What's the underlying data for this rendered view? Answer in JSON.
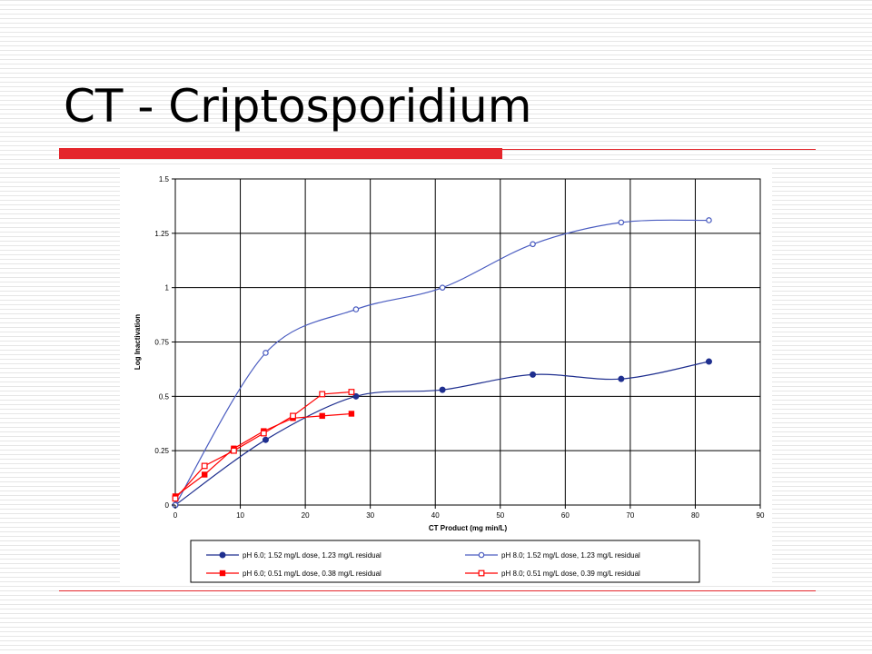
{
  "slide": {
    "title": "CT - Criptosporidium"
  },
  "colors": {
    "accent_red": "#e4262c",
    "series_blue": "#1f2f8f",
    "series_blue_light": "#4a5cc0",
    "series_red": "#ff0000"
  },
  "chart_data": {
    "type": "line",
    "xlabel": "CT Product (mg min/L)",
    "ylabel": "Log Inactivation",
    "xlim": [
      0,
      90
    ],
    "ylim": [
      0,
      1.5
    ],
    "x_ticks": [
      0,
      10,
      20,
      30,
      40,
      50,
      60,
      70,
      80,
      90
    ],
    "x_tick_labels": [
      "0",
      "10",
      "20",
      "30",
      "40",
      "50",
      "60",
      "70",
      "80",
      "90"
    ],
    "y_ticks": [
      0,
      0.25,
      0.5,
      0.75,
      1,
      1.25,
      1.5
    ],
    "y_tick_labels": [
      "0",
      "0.25",
      "0.5",
      "0.75",
      "1",
      "1.25",
      "1.5"
    ],
    "grid": true,
    "legend_position": "bottom",
    "series": [
      {
        "name": "pH 6.0; 1.52 mg/L dose, 1.23 mg/L residual",
        "color": "#1f2f8f",
        "marker": "circle-filled",
        "smooth": true,
        "points": [
          [
            0,
            0
          ],
          [
            13.9,
            0.3
          ],
          [
            27.8,
            0.5
          ],
          [
            41.1,
            0.53
          ],
          [
            55,
            0.6
          ],
          [
            68.6,
            0.58
          ],
          [
            82.1,
            0.66
          ]
        ]
      },
      {
        "name": "pH 8.0; 1.52 mg/L dose, 1.23 mg/L residual",
        "color": "#4a5cc0",
        "marker": "circle-open",
        "smooth": true,
        "points": [
          [
            0,
            0
          ],
          [
            13.9,
            0.7
          ],
          [
            27.8,
            0.9
          ],
          [
            41.1,
            1.0
          ],
          [
            55,
            1.2
          ],
          [
            68.6,
            1.3
          ],
          [
            82.1,
            1.31
          ]
        ]
      },
      {
        "name": "pH 6.0; 0.51 mg/L dose, 0.38 mg/L residual",
        "color": "#ff0000",
        "marker": "square-filled",
        "smooth": false,
        "points": [
          [
            0,
            0.04
          ],
          [
            4.5,
            0.14
          ],
          [
            9,
            0.26
          ],
          [
            13.6,
            0.34
          ],
          [
            18.1,
            0.4
          ],
          [
            22.6,
            0.41
          ],
          [
            27.1,
            0.42
          ]
        ]
      },
      {
        "name": "pH 8.0; 0.51 mg/L dose, 0.39 mg/L residual",
        "color": "#ff0000",
        "marker": "square-open",
        "smooth": false,
        "points": [
          [
            0,
            0.03
          ],
          [
            4.5,
            0.18
          ],
          [
            9,
            0.25
          ],
          [
            13.6,
            0.33
          ],
          [
            18.1,
            0.41
          ],
          [
            22.6,
            0.51
          ],
          [
            27.1,
            0.52
          ]
        ]
      }
    ]
  }
}
